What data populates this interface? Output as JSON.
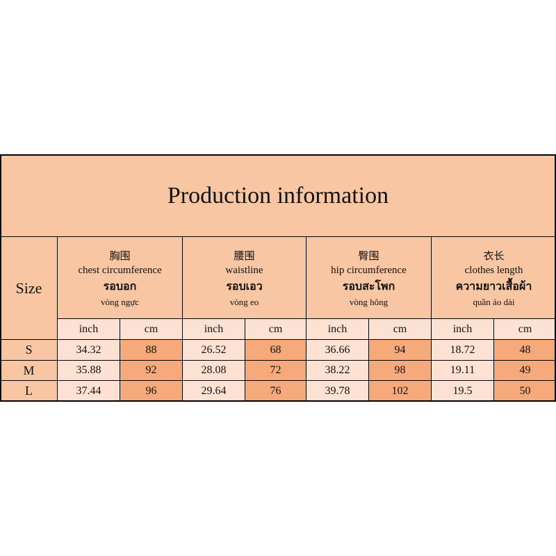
{
  "title": "Production information",
  "table": {
    "corner": "Size",
    "groups": [
      {
        "zh": "胸围",
        "en": "chest circumference",
        "th": "รอบอก",
        "vi": "vòng ngực"
      },
      {
        "zh": "腰围",
        "en": "waistline",
        "th": "รอบเอว",
        "vi": "vòng eo"
      },
      {
        "zh": "臀围",
        "en": "hip circumference",
        "th": "รอบสะโพก",
        "vi": "vòng hông"
      },
      {
        "zh": "衣长",
        "en": "clothes length",
        "th": "ความยาวเสื้อผ้า",
        "vi": "quần áo dài"
      }
    ],
    "units": [
      "inch",
      "cm"
    ],
    "rows": [
      {
        "size": "S",
        "values": [
          34.32,
          88,
          26.52,
          68,
          36.66,
          94,
          18.72,
          48
        ]
      },
      {
        "size": "M",
        "values": [
          35.88,
          92,
          28.08,
          72,
          38.22,
          98,
          19.11,
          49
        ]
      },
      {
        "size": "L",
        "values": [
          37.44,
          96,
          29.64,
          76,
          39.78,
          102,
          19.5,
          50
        ]
      }
    ]
  }
}
